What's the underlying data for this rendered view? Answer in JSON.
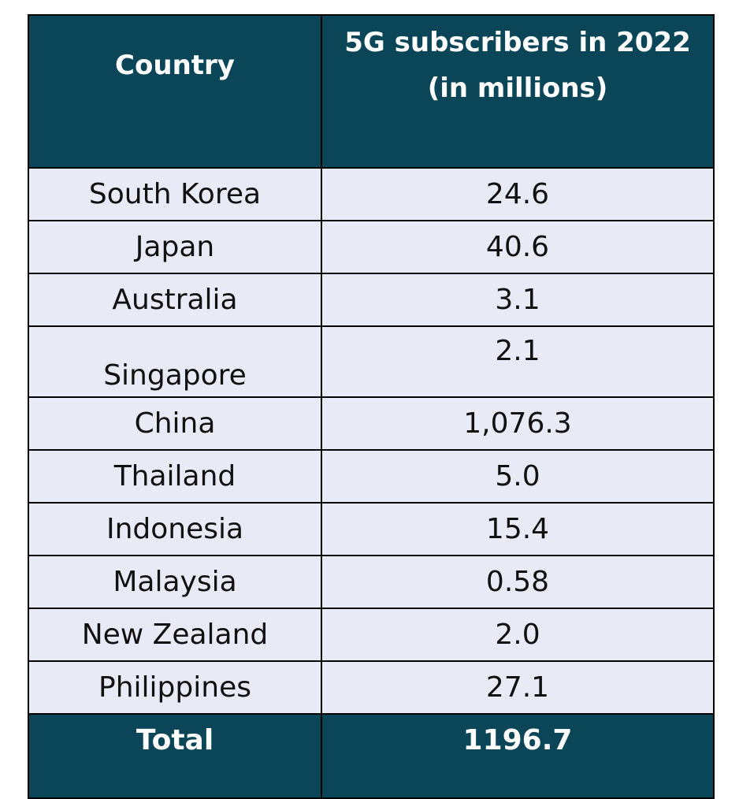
{
  "table": {
    "headers": {
      "country": "Country",
      "value_line1": "5G subscribers in 2022",
      "value_line2": "(in millions)"
    },
    "rows": [
      {
        "country": "South Korea",
        "value": "24.6"
      },
      {
        "country": "Japan",
        "value": "40.6"
      },
      {
        "country": "Australia",
        "value": "3.1"
      },
      {
        "country": "Singapore",
        "value": "2.1"
      },
      {
        "country": "China",
        "value": "1,076.3"
      },
      {
        "country": "Thailand",
        "value": "5.0"
      },
      {
        "country": "Indonesia",
        "value": "15.4"
      },
      {
        "country": "Malaysia",
        "value": "0.58"
      },
      {
        "country": "New Zealand",
        "value": "2.0"
      },
      {
        "country": "Philippines",
        "value": "27.1"
      }
    ],
    "total": {
      "label": "Total",
      "value": "1196.7"
    }
  },
  "colors": {
    "header_bg": "#0b4558",
    "header_text": "#ffffff",
    "row_bg": "#e8eaf6",
    "border": "#000000"
  }
}
